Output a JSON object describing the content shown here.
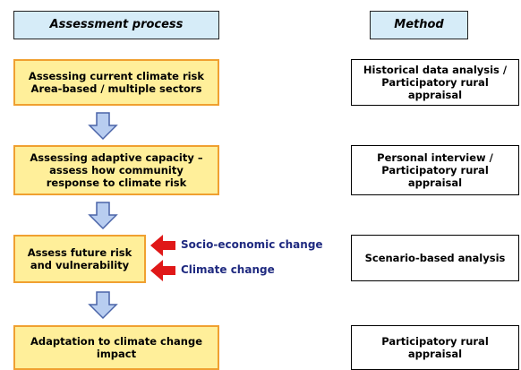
{
  "headers": {
    "process": "Assessment process",
    "method": "Method"
  },
  "steps": [
    {
      "lines": [
        "Assessing current climate risk",
        "Area-based / multiple sectors"
      ]
    },
    {
      "lines": [
        "Assessing adaptive capacity –",
        "assess how community",
        "response to climate risk"
      ]
    },
    {
      "lines": [
        "Assess future risk",
        "and vulnerability"
      ]
    },
    {
      "lines": [
        "Adaptation to climate change",
        "impact"
      ]
    }
  ],
  "methods": [
    {
      "lines": [
        "Historical data analysis /",
        "Participatory rural",
        "appraisal"
      ]
    },
    {
      "lines": [
        "Personal interview /",
        "Participatory rural",
        "appraisal"
      ]
    },
    {
      "lines": [
        "Scenario-based analysis"
      ]
    },
    {
      "lines": [
        "Participatory rural",
        "appraisal"
      ]
    }
  ],
  "drivers": [
    "Socio-economic change",
    "Climate change"
  ]
}
